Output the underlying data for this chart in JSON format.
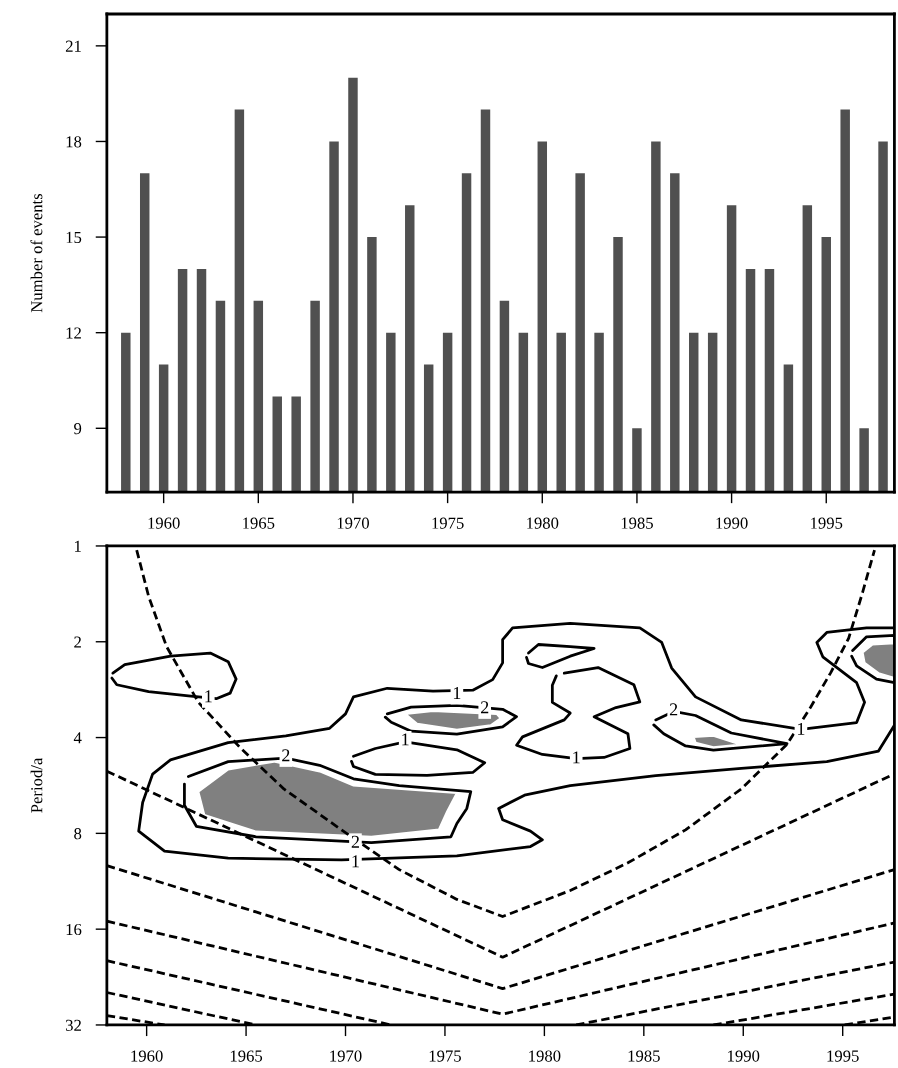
{
  "chart_data": [
    {
      "type": "bar",
      "ylabel": "Number of events",
      "x": [
        1958,
        1959,
        1960,
        1961,
        1962,
        1963,
        1964,
        1965,
        1966,
        1967,
        1968,
        1969,
        1970,
        1971,
        1972,
        1973,
        1974,
        1975,
        1976,
        1977,
        1978,
        1979,
        1980,
        1981,
        1982,
        1983,
        1984,
        1985,
        1986,
        1987,
        1988,
        1989,
        1990,
        1991,
        1992,
        1993,
        1994,
        1995,
        1996,
        1997,
        1998
      ],
      "series": [
        {
          "color": "#505050",
          "values": [
            12,
            17,
            11,
            14,
            14,
            13,
            19,
            13,
            10,
            10,
            13,
            18,
            20,
            15,
            12,
            16,
            11,
            12,
            17,
            19,
            13,
            12,
            18,
            12,
            17,
            12,
            15,
            9,
            18,
            17,
            12,
            12,
            16,
            14,
            14,
            11,
            16,
            15,
            19,
            9,
            18
          ]
        }
      ],
      "xlim": [
        1957,
        1998.6
      ],
      "xticks": [
        1960,
        1965,
        1970,
        1975,
        1980,
        1985,
        1990,
        1995
      ],
      "ylim": [
        7,
        22
      ],
      "yticks": [
        9,
        12,
        15,
        18,
        21
      ]
    },
    {
      "type": "line",
      "ylabel": "Period/a",
      "log": "y",
      "xlim": [
        1958,
        1997.6
      ],
      "xticks": [
        1960,
        1965,
        1970,
        1975,
        1980,
        1985,
        1990,
        1995
      ],
      "ylim": [
        32,
        1
      ],
      "yticks": [
        1,
        2,
        4,
        8,
        16,
        32
      ],
      "series": [
        {
          "type": "line",
          "color": "#000000",
          "line_style": "solid",
          "x": [
            1958.3,
            1958.9,
            1961.2,
            1963.2,
            1964.1,
            1964.5,
            1964.2,
            1963.5,
            1962.1,
            1960.1,
            1958.5,
            1958.25
          ],
          "values": [
            2.51,
            2.36,
            2.22,
            2.17,
            2.31,
            2.62,
            2.9,
            3.02,
            2.96,
            2.87,
            2.73,
            2.6
          ]
        },
        {
          "type": "line",
          "color": "#000000",
          "line_style": "solid",
          "x": [
            1997.6,
            1996.8,
            1994.2,
            1989.9,
            1985.6,
            1981.3,
            1979.0,
            1977.7,
            1977.9,
            1979.3,
            1979.9,
            1979.3,
            1975.6,
            1969.8,
            1964.1,
            1960.9,
            1959.6,
            1959.8,
            1960.3,
            1961.2,
            1964.1,
            1967.0,
            1969.2,
            1970.0,
            1970.4,
            1972.1,
            1974.4,
            1976.4,
            1977.4,
            1977.9,
            1977.9,
            1978.4,
            1981.3,
            1984.8,
            1985.9,
            1986.4,
            1987.6,
            1989.9,
            1992.9,
            1995.7,
            1996.1,
            1995.7,
            1994.0,
            1993.7,
            1994.2,
            1996.2,
            1997.6
          ],
          "values": [
            3.66,
            4.41,
            4.76,
            5.0,
            5.27,
            5.66,
            6.07,
            6.68,
            7.25,
            7.87,
            8.38,
            8.8,
            9.41,
            9.69,
            9.57,
            9.1,
            7.87,
            6.4,
            5.21,
            4.7,
            4.15,
            3.95,
            3.74,
            3.37,
            2.98,
            2.8,
            2.86,
            2.84,
            2.63,
            2.33,
            1.97,
            1.81,
            1.75,
            1.81,
            2.01,
            2.42,
            2.98,
            3.52,
            3.77,
            3.59,
            3.1,
            2.69,
            2.23,
            2.01,
            1.87,
            1.81,
            1.81
          ]
        },
        {
          "type": "line",
          "color": "#000000",
          "line_style": "solid",
          "x": [
            1979.2,
            1979.7,
            1981.3,
            1982.5,
            1981.3,
            1979.9,
            1979.2,
            1979.1
          ],
          "values": [
            2.17,
            2.04,
            2.07,
            2.1,
            2.22,
            2.41,
            2.34,
            2.24
          ]
        },
        {
          "type": "line",
          "color": "#000000",
          "line_style": "solid",
          "x": [
            1981.0,
            1982.7,
            1984.5,
            1984.8,
            1983.6,
            1982.5,
            1984.2,
            1984.3,
            1983.0,
            1981.6,
            1979.9,
            1978.6,
            1978.9,
            1981.0,
            1981.3,
            1980.4,
            1980.4,
            1980.6
          ],
          "values": [
            2.51,
            2.41,
            2.73,
            3.09,
            3.22,
            3.44,
            3.89,
            4.33,
            4.62,
            4.66,
            4.52,
            4.23,
            3.98,
            3.52,
            3.35,
            3.1,
            2.74,
            2.56
          ]
        },
        {
          "type": "line",
          "color": "#000000",
          "line_style": "solid",
          "x": [
            1970.4,
            1971.5,
            1973.0,
            1975.6,
            1977.0,
            1976.4,
            1974.1,
            1971.5,
            1970.4,
            1970.3
          ],
          "values": [
            4.58,
            4.33,
            4.13,
            4.37,
            4.8,
            5.15,
            5.26,
            5.22,
            4.93,
            4.75
          ]
        },
        {
          "type": "line",
          "color": "#000000",
          "line_style": "solid",
          "x": [
            1972.1,
            1973.3,
            1975.6,
            1977.9,
            1978.6,
            1977.9,
            1975.6,
            1973.3,
            1972.3,
            1972.0
          ],
          "values": [
            3.37,
            3.21,
            3.17,
            3.26,
            3.44,
            3.7,
            3.9,
            3.82,
            3.58,
            3.45
          ]
        },
        {
          "type": "line",
          "color": "#000000",
          "line_style": "solid",
          "x": [
            1962.1,
            1964.1,
            1967.0,
            1968.7,
            1970.4,
            1972.7,
            1976.3,
            1976.1,
            1975.6,
            1975.3,
            1971.3,
            1965.5,
            1962.5,
            1961.9,
            1961.9
          ],
          "values": [
            5.3,
            4.76,
            4.64,
            4.89,
            5.39,
            5.66,
            5.91,
            6.68,
            7.45,
            8.2,
            8.55,
            8.2,
            7.6,
            6.53,
            5.6
          ]
        },
        {
          "type": "line",
          "color": "#000000",
          "line_style": "solid",
          "x": [
            1985.6,
            1986.5,
            1987.6,
            1989.4,
            1992.2,
            1988.5,
            1987.1,
            1986.0,
            1985.5
          ],
          "values": [
            3.52,
            3.31,
            3.41,
            3.87,
            4.18,
            4.38,
            4.25,
            3.89,
            3.65
          ]
        },
        {
          "type": "line",
          "color": "#000000",
          "line_style": "solid",
          "x": [
            1995.5,
            1996.2,
            1997.6,
            1997.6,
            1996.7,
            1995.7,
            1995.45
          ],
          "values": [
            2.13,
            1.93,
            1.91,
            2.69,
            2.62,
            2.38,
            2.22
          ]
        },
        {
          "type": "line",
          "color": "#000000",
          "line_style": "dashed",
          "x": [
            1959.5,
            1960.1,
            1961.0,
            1962.6,
            1964.7,
            1966.9,
            1969.8,
            1972.7,
            1975.6,
            1977.9,
            1981.3,
            1984.2,
            1987.1,
            1989.9,
            1992.2,
            1993.4,
            1994.4,
            1995.3,
            1996.0,
            1996.6
          ],
          "values": [
            1.03,
            1.44,
            2.07,
            3.1,
            4.3,
            5.8,
            7.8,
            10.4,
            12.9,
            14.6,
            12.1,
            9.9,
            7.8,
            5.8,
            4.2,
            3.2,
            2.5,
            1.95,
            1.4,
            1.03
          ]
        },
        {
          "type": "line",
          "color": "#000000",
          "line_style": "dashed",
          "x": [
            1958.0,
            1977.9,
            1997.6
          ],
          "values": [
            5.1,
            19.6,
            5.2
          ]
        },
        {
          "type": "line",
          "color": "#000000",
          "line_style": "dashed",
          "x": [
            1958.0,
            1977.9,
            1997.6
          ],
          "values": [
            10.1,
            24.6,
            10.4
          ]
        },
        {
          "type": "line",
          "color": "#000000",
          "line_style": "dashed",
          "x": [
            1958.0,
            1977.9,
            1997.6
          ],
          "values": [
            15.1,
            29.6,
            15.3
          ]
        },
        {
          "type": "line",
          "color": "#000000",
          "line_style": "dashed",
          "x": [
            1958.0,
            1972.3,
            1977.9,
            1981.6,
            1997.6
          ],
          "values": [
            20.1,
            32,
            null,
            32,
            20.3
          ]
        },
        {
          "type": "line",
          "color": "#000000",
          "line_style": "dashed",
          "x": [
            1958.0,
            1965.5,
            1977.9,
            1988.5,
            1997.6
          ],
          "values": [
            25.3,
            32,
            null,
            32,
            25.6
          ]
        },
        {
          "type": "line",
          "color": "#000000",
          "line_style": "dashed",
          "x": [
            1958.0,
            1960.9,
            1977.9,
            1995.1,
            1997.6
          ],
          "values": [
            29.9,
            32,
            null,
            32,
            30.2
          ]
        },
        {
          "type": "area",
          "color": "#808080",
          "x": [
            1962.6,
            1964.1,
            1966.4,
            1968.7,
            1970.4,
            1975.6,
            1975.1,
            1974.7,
            1971.3,
            1965.5,
            1962.9
          ],
          "values": [
            5.92,
            5.04,
            4.76,
            5.11,
            5.66,
            5.97,
            6.85,
            7.78,
            8.2,
            7.9,
            7.0
          ]
        },
        {
          "type": "area",
          "color": "#808080",
          "x": [
            1973.0,
            1974.4,
            1977.6,
            1977.8,
            1977.3,
            1975.6,
            1973.6
          ],
          "values": [
            3.37,
            3.3,
            3.37,
            3.48,
            3.66,
            3.78,
            3.62
          ]
        },
        {
          "type": "area",
          "color": "#808080",
          "x": [
            1987.5,
            1988.5,
            1989.9,
            1988.5,
            1987.6
          ],
          "values": [
            3.98,
            3.95,
            4.21,
            4.29,
            4.15
          ]
        },
        {
          "type": "area",
          "color": "#808080",
          "x": [
            1996.0,
            1996.5,
            1997.6,
            1997.6,
            1996.8,
            1996.1
          ],
          "values": [
            2.16,
            2.04,
            2.02,
            2.6,
            2.51,
            2.33
          ]
        }
      ],
      "annotations": [
        {
          "text": "1",
          "x": 1963.1,
          "y": 3.0
        },
        {
          "text": "1",
          "x": 1975.6,
          "y": 2.93
        },
        {
          "text": "2",
          "x": 1977.0,
          "y": 3.25
        },
        {
          "text": "1",
          "x": 1973.0,
          "y": 4.1
        },
        {
          "text": "1",
          "x": 1981.6,
          "y": 4.67
        },
        {
          "text": "2",
          "x": 1986.5,
          "y": 3.3
        },
        {
          "text": "1",
          "x": 1992.9,
          "y": 3.8
        },
        {
          "text": "2",
          "x": 1967.0,
          "y": 4.6
        },
        {
          "text": "2",
          "x": 1970.5,
          "y": 8.6
        },
        {
          "text": "1",
          "x": 1970.5,
          "y": 9.9
        }
      ]
    }
  ]
}
